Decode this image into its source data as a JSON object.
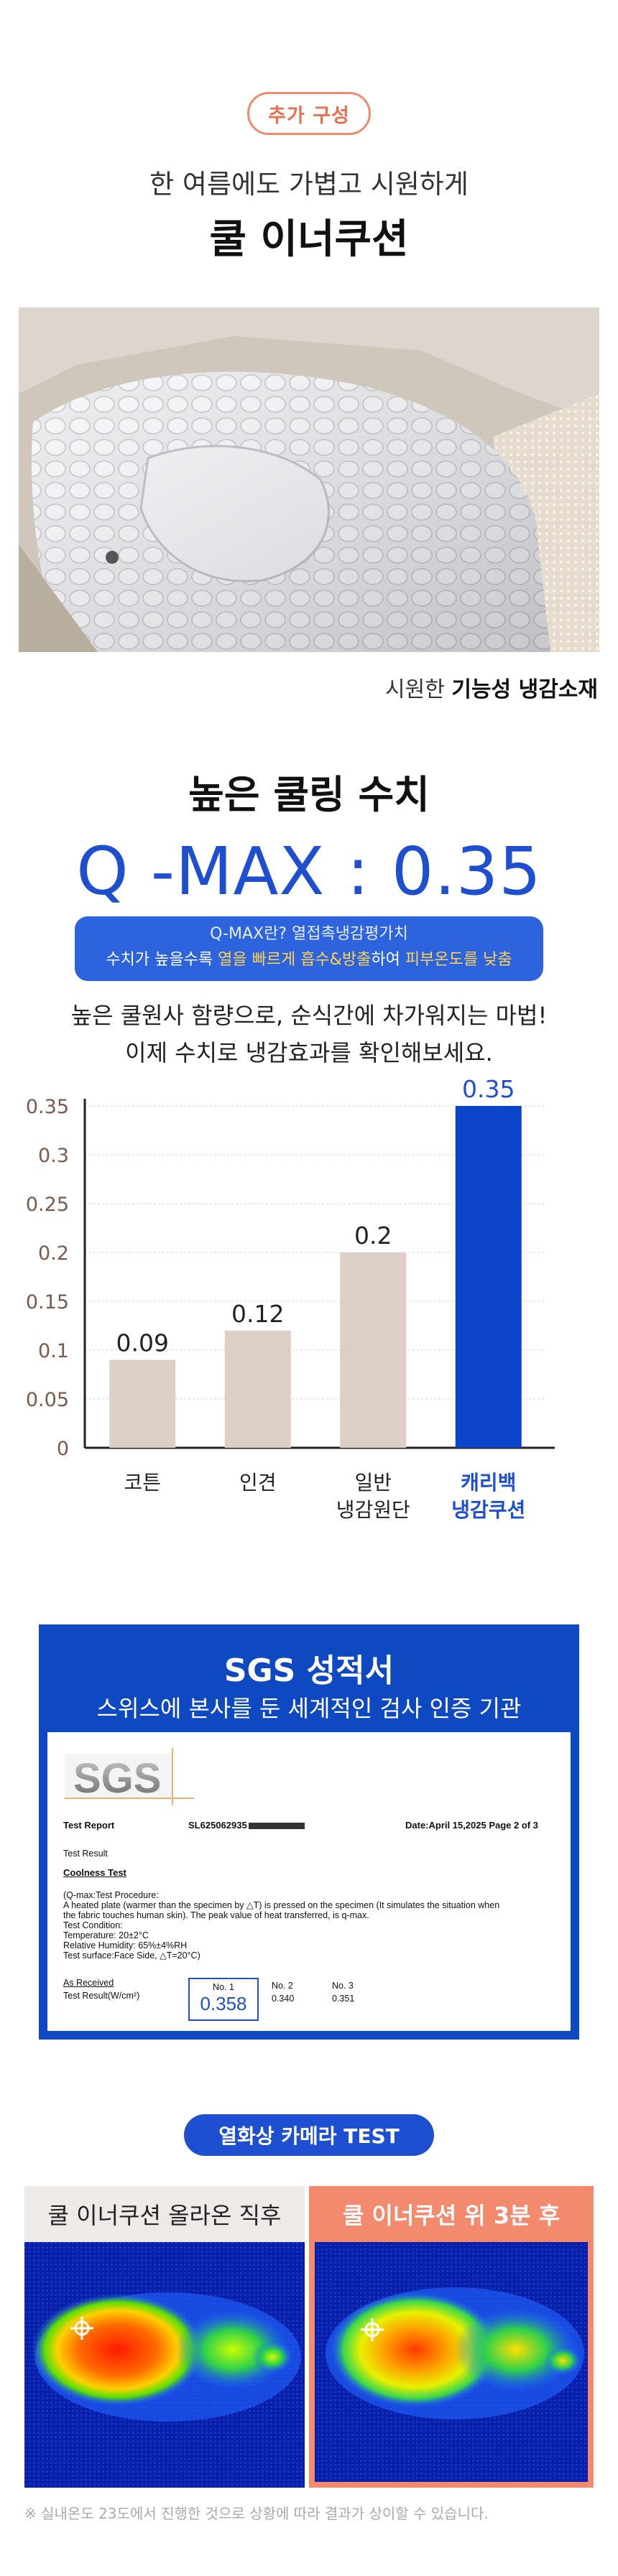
{
  "intro": {
    "tag": "추가 구성",
    "subtitle": "한 여름에도 가볍고 시원하게",
    "title": "쿨 이너쿠션",
    "caption_prefix": "시원한 ",
    "caption_bold": "기능성 냉감소재"
  },
  "qmax": {
    "heading": "높은 쿨링 수치",
    "value": "Q -MAX : 0.35",
    "box_line1": "Q-MAX란? 열접촉냉감평가치",
    "box_line2_a": "수치가 높을수록 ",
    "box_line2_hl1": "열을 빠르게 흡수&방출",
    "box_line2_b": "하여 ",
    "box_line2_hl2": "피부온도를 낮춤",
    "desc_line1": "높은 쿨원사 함량으로, 순식간에 차가워지는 마법!",
    "desc_line2": "이제 수치로 냉감효과를 확인해보세요."
  },
  "chart_data": {
    "type": "bar",
    "categories": [
      "코튼",
      "인견",
      "일반\n냉감원단",
      "캐리백\n냉감쿠션"
    ],
    "values": [
      0.09,
      0.12,
      0.2,
      0.35
    ],
    "value_labels": [
      "0.09",
      "0.12",
      "0.2",
      "0.35"
    ],
    "ylim": [
      0,
      0.35
    ],
    "yticks": [
      "0",
      "0.05",
      "0.1",
      "0.15",
      "0.2",
      "0.25",
      "0.3",
      "0.35"
    ],
    "title": "",
    "xlabel": "",
    "ylabel": "",
    "grid": true,
    "colors": {
      "default_bar": "#ddcfc6",
      "highlight_bar": "#0c45c9",
      "highlight_label": "#1f4fd1",
      "tick_label": "#7a5a4a"
    }
  },
  "sgs": {
    "title": "SGS 성적서",
    "subtitle": "스위스에 본사를 둔 세계적인 검사 인증 기관",
    "logo_text": "SGS",
    "report_label": "Test Report",
    "report_no": "SL625062935",
    "report_date": "Date:April 15,2025   Page 2 of 3",
    "test_result": "Test Result",
    "coolness_test": "Coolness Test",
    "procedure_lines": [
      "(Q-max:Test Procedure:",
      "A heated plate (warmer than the specimen by △T) is pressed on the specimen (It simulates the situation when",
      "the fabric touches human skin). The peak value of heat transferred, is q-max.",
      "Test Condition:",
      "Temperature: 20±2°C",
      "Relative Humidity: 65%±4%RH",
      "Test surface:Face Side, △T=20°C)"
    ],
    "as_received": "As Received",
    "result_label": "Test Result(W/cm²)",
    "results": [
      {
        "no": "No. 1",
        "value": "0.358"
      },
      {
        "no": "No. 2",
        "value": "0.340"
      },
      {
        "no": "No. 3",
        "value": "0.351"
      }
    ]
  },
  "thermal": {
    "pill": "열화상 카메라 TEST",
    "left_label": "쿨 이너쿠션 올라온 직후",
    "right_label": "쿨 이너쿠션 위 3분 후",
    "footnote": "※ 실내온도 23도에서 진행한 것으로 상황에 따라 결과가 상이할 수 있습니다."
  }
}
